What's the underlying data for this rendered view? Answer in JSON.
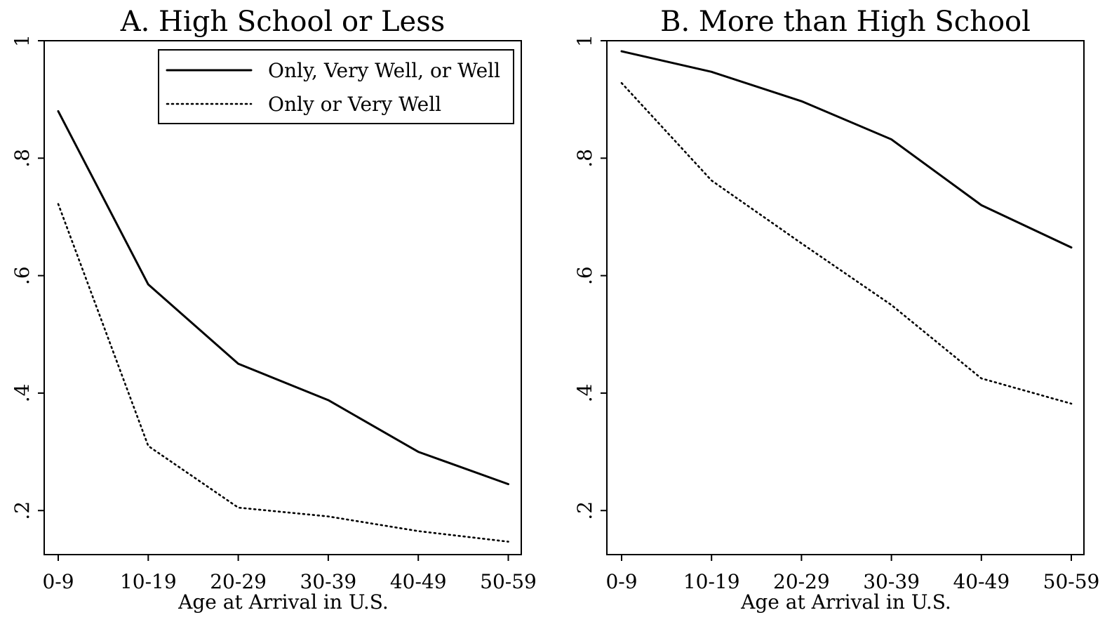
{
  "chart_data": [
    {
      "type": "line",
      "title": "A. High School or Less",
      "xlabel": "Age at Arrival in U.S.",
      "ylabel": "",
      "categories": [
        "0-9",
        "10-19",
        "20-29",
        "30-39",
        "40-49",
        "50-59"
      ],
      "ylim": [
        0.125,
        1
      ],
      "yticks": [
        0.2,
        0.4,
        0.6,
        0.8,
        1
      ],
      "ytick_labels": [
        ".2",
        ".4",
        ".6",
        ".8",
        "1"
      ],
      "grid": false,
      "legend": "top-right",
      "series": [
        {
          "name": "Only, Very Well, or Well",
          "style": "solid",
          "values": [
            0.88,
            0.585,
            0.45,
            0.388,
            0.3,
            0.245
          ]
        },
        {
          "name": "Only or Very Well",
          "style": "dotted",
          "values": [
            0.722,
            0.31,
            0.205,
            0.19,
            0.165,
            0.147
          ]
        }
      ]
    },
    {
      "type": "line",
      "title": "B. More than High School",
      "xlabel": "Age at Arrival in U.S.",
      "ylabel": "",
      "categories": [
        "0-9",
        "10-19",
        "20-29",
        "30-39",
        "40-49",
        "50-59"
      ],
      "ylim": [
        0.125,
        1
      ],
      "yticks": [
        0.2,
        0.4,
        0.6,
        0.8,
        1
      ],
      "ytick_labels": [
        ".2",
        ".4",
        ".6",
        ".8",
        "1"
      ],
      "grid": false,
      "legend": "none",
      "series": [
        {
          "name": "Only, Very Well, or Well",
          "style": "solid",
          "values": [
            0.982,
            0.947,
            0.897,
            0.832,
            0.72,
            0.648
          ]
        },
        {
          "name": "Only or Very Well",
          "style": "dotted",
          "values": [
            0.928,
            0.762,
            0.655,
            0.55,
            0.425,
            0.382
          ]
        }
      ]
    }
  ],
  "colors": {
    "line": "#000000",
    "background": "#ffffff"
  }
}
